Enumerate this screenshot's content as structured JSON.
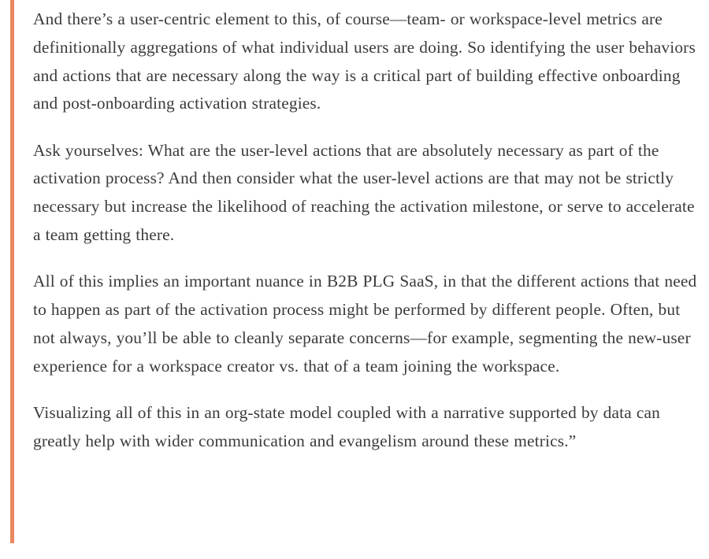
{
  "quote": {
    "paragraphs": [
      "And there’s a user-centric element to this, of course—team- or workspace-level metrics are definitionally aggregations of what individual users are doing. So identifying the user behaviors and actions that are necessary along the way is a critical part of building effective onboarding and post-onboarding activation strategies.",
      "Ask yourselves: What are the user-level actions that are absolutely necessary as part of the activation process? And then consider what the user-level actions are that may not be strictly necessary but increase the likelihood of reaching the activation milestone, or serve to accelerate a team getting there.",
      "All of this implies an important nuance in B2B PLG SaaS, in that the different actions that need to happen as part of the activation process might be performed by different people. Often, but not always, you’ll be able to cleanly separate concerns—for example, segmenting the new-user experience for a workspace creator vs. that of a team joining the workspace.",
      "Visualizing all of this in an org-state model coupled with a narrative supported by data can greatly help with wider communication and evangelism around these metrics.”"
    ]
  },
  "colors": {
    "accent_bar": "#e9875f",
    "text": "#3b3b3b",
    "background": "#ffffff"
  }
}
